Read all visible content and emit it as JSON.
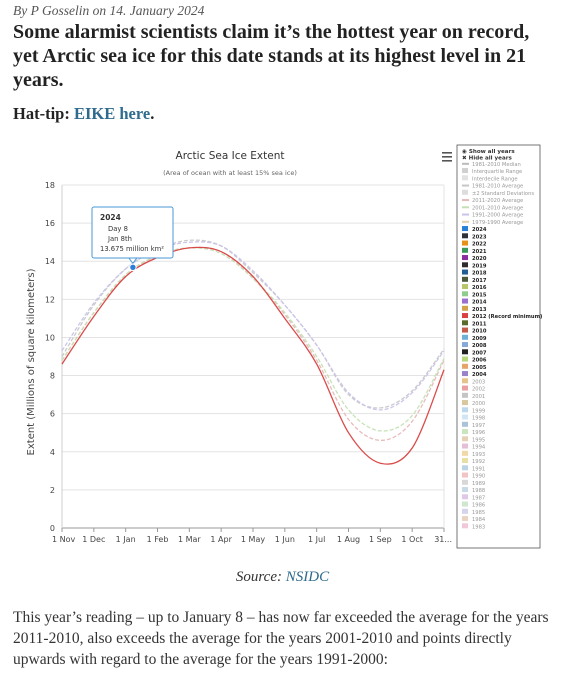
{
  "article": {
    "byline_prefix": "By",
    "author": "P Gosselin",
    "date_prefix": "on",
    "date": "14. January 2024",
    "headline": "Some alarmist scientists claim it’s the hottest year on record, yet Arctic sea ice for this date stands at its highest level in 21 years.",
    "hattip_label": "Hat-tip:",
    "hattip_link": "EIKE here",
    "hattip_end": ".",
    "source_label": "Source:",
    "source_link": "NSIDC",
    "body": "This year’s reading – up to January 8 – has now far exceeded the average for the years 2011-2010, also exceeds the average for the years 2001-2010 and points directly upwards with regard to the average for the years 1991-2000:"
  },
  "colors": {
    "link": "#2e6b8e",
    "highlight_2024": "#4a9ad4",
    "tooltip_border": "#4a9ad4"
  },
  "chart_data": {
    "type": "line",
    "title": "Arctic Sea Ice Extent",
    "subtitle": "(Area of ocean with at least 15% sea ice)",
    "ylabel": "Extent (Millions of square kilometers)",
    "xlabel": "",
    "ylim": [
      0,
      18
    ],
    "y_ticks": [
      0,
      2,
      4,
      6,
      8,
      10,
      12,
      14,
      16,
      18
    ],
    "x_ticks": [
      "1 Nov",
      "1 Dec",
      "1 Jan",
      "1 Feb",
      "1 Mar",
      "1 Apr",
      "1 May",
      "1 Jun",
      "1 Jul",
      "1 Aug",
      "1 Sep",
      "1 Oct",
      "31..."
    ],
    "x_months": [
      "Nov",
      "Dec",
      "Jan",
      "Feb",
      "Mar",
      "Apr",
      "May",
      "Jun",
      "Jul",
      "Aug",
      "Sep",
      "Oct",
      "Oct-end"
    ],
    "grid": true,
    "legend_position": "right",
    "tooltip": {
      "year": "2024",
      "line1": "Day 8",
      "line2": "Jan 8th",
      "line3": "13.675 million km²"
    },
    "series": [
      {
        "name": "2024",
        "values": [
          null,
          null,
          13.68,
          null,
          null,
          null,
          null,
          null,
          null,
          null,
          null,
          null,
          null
        ]
      },
      {
        "name": "1981-2010 Average",
        "values": [
          9.0,
          11.7,
          13.6,
          14.6,
          15.1,
          14.8,
          13.4,
          11.7,
          9.6,
          7.0,
          6.3,
          7.2,
          9.4
        ]
      },
      {
        "name": "2011-2020 Average",
        "values": [
          8.8,
          11.3,
          13.2,
          14.3,
          14.7,
          14.5,
          13.1,
          11.2,
          8.8,
          5.7,
          4.6,
          5.6,
          8.8
        ]
      },
      {
        "name": "2001-2010 Average",
        "values": [
          8.8,
          11.3,
          13.3,
          14.3,
          14.7,
          14.4,
          13.1,
          11.3,
          9.0,
          6.2,
          5.1,
          5.9,
          8.9
        ]
      },
      {
        "name": "1991-2000 Average",
        "values": [
          9.3,
          11.8,
          13.6,
          14.6,
          15.0,
          14.8,
          13.5,
          11.7,
          9.6,
          7.1,
          6.2,
          7.1,
          9.3
        ]
      },
      {
        "name": "2012 (Record minimum)",
        "values": [
          8.6,
          11.1,
          13.2,
          14.2,
          14.7,
          14.5,
          13.2,
          11.0,
          8.6,
          5.0,
          3.4,
          4.2,
          8.3
        ]
      }
    ],
    "legend": [
      {
        "label": "Show all years",
        "color": "#555555",
        "style": "control",
        "bold": true
      },
      {
        "label": "Hide all years",
        "color": "#555555",
        "style": "control",
        "bold": true
      },
      {
        "label": "1981-2010 Median",
        "color": "#bbbbbb",
        "style": "line",
        "bold": false
      },
      {
        "label": "Interquartile Range",
        "color": "#d0d0d0",
        "style": "box",
        "bold": false
      },
      {
        "label": "Interdecile Range",
        "color": "#e2e2e2",
        "style": "box",
        "bold": false
      },
      {
        "label": "1981-2010 Average",
        "color": "#c7c7c7",
        "style": "line",
        "bold": false
      },
      {
        "label": "±2 Standard Deviations",
        "color": "#dddddd",
        "style": "box",
        "bold": false
      },
      {
        "label": "2011-2020 Average",
        "color": "#e7b8b8",
        "style": "line",
        "bold": false
      },
      {
        "label": "2001-2010 Average",
        "color": "#c3e0b3",
        "style": "line",
        "bold": false
      },
      {
        "label": "1991-2000 Average",
        "color": "#c9c3ea",
        "style": "line",
        "bold": false
      },
      {
        "label": "1979-1990 Average",
        "color": "#e6cfa7",
        "style": "line",
        "bold": false
      },
      {
        "label": "2024",
        "color": "#2a7fd6",
        "style": "box",
        "bold": true
      },
      {
        "label": "2023",
        "color": "#2e3238",
        "style": "box",
        "bold": true
      },
      {
        "label": "2022",
        "color": "#e69119",
        "style": "box",
        "bold": true
      },
      {
        "label": "2021",
        "color": "#3b9a5a",
        "style": "box",
        "bold": true
      },
      {
        "label": "2020",
        "color": "#8a2ea0",
        "style": "box",
        "bold": true
      },
      {
        "label": "2019",
        "color": "#2c2c2c",
        "style": "box",
        "bold": true
      },
      {
        "label": "2018",
        "color": "#1f5f96",
        "style": "box",
        "bold": true
      },
      {
        "label": "2017",
        "color": "#4a5a3a",
        "style": "box",
        "bold": true
      },
      {
        "label": "2016",
        "color": "#b8c66a",
        "style": "box",
        "bold": true
      },
      {
        "label": "2015",
        "color": "#8fcd8f",
        "style": "box",
        "bold": true
      },
      {
        "label": "2014",
        "color": "#9a6fcf",
        "style": "box",
        "bold": true
      },
      {
        "label": "2013",
        "color": "#d3a34a",
        "style": "box",
        "bold": true
      },
      {
        "label": "2012 (Record minimum)",
        "color": "#d94141",
        "style": "box",
        "bold": true
      },
      {
        "label": "2011",
        "color": "#5a6a2a",
        "style": "box",
        "bold": true
      },
      {
        "label": "2010",
        "color": "#c65a4a",
        "style": "box",
        "bold": true
      },
      {
        "label": "2009",
        "color": "#6fb0d9",
        "style": "box",
        "bold": true
      },
      {
        "label": "2008",
        "color": "#86a9d8",
        "style": "box",
        "bold": true
      },
      {
        "label": "2007",
        "color": "#222222",
        "style": "box",
        "bold": true
      },
      {
        "label": "2006",
        "color": "#b6d77a",
        "style": "box",
        "bold": true
      },
      {
        "label": "2005",
        "color": "#e7a46a",
        "style": "box",
        "bold": true
      },
      {
        "label": "2004",
        "color": "#9a83c9",
        "style": "box",
        "bold": true
      },
      {
        "label": "2003",
        "color": "#e6c38a",
        "style": "box",
        "bold": false
      },
      {
        "label": "2002",
        "color": "#e8a0a0",
        "style": "box",
        "bold": false
      },
      {
        "label": "2001",
        "color": "#c5c5c5",
        "style": "box",
        "bold": false
      },
      {
        "label": "2000",
        "color": "#d9c7a0",
        "style": "box",
        "bold": false
      },
      {
        "label": "1999",
        "color": "#bcd8ef",
        "style": "box",
        "bold": false
      },
      {
        "label": "1998",
        "color": "#d0e6f4",
        "style": "box",
        "bold": false
      },
      {
        "label": "1997",
        "color": "#a9c4d8",
        "style": "box",
        "bold": false
      },
      {
        "label": "1996",
        "color": "#c9e6c0",
        "style": "box",
        "bold": false
      },
      {
        "label": "1995",
        "color": "#e7d1b6",
        "style": "box",
        "bold": false
      },
      {
        "label": "1994",
        "color": "#e4bfd6",
        "style": "box",
        "bold": false
      },
      {
        "label": "1993",
        "color": "#f0d8a8",
        "style": "box",
        "bold": false
      },
      {
        "label": "1992",
        "color": "#e6e0a6",
        "style": "box",
        "bold": false
      },
      {
        "label": "1991",
        "color": "#b9d4e6",
        "style": "box",
        "bold": false
      },
      {
        "label": "1990",
        "color": "#f2c4c4",
        "style": "box",
        "bold": false
      },
      {
        "label": "1989",
        "color": "#d8d8d8",
        "style": "box",
        "bold": false
      },
      {
        "label": "1988",
        "color": "#c8d9e8",
        "style": "box",
        "bold": false
      },
      {
        "label": "1987",
        "color": "#dfc9e6",
        "style": "box",
        "bold": false
      },
      {
        "label": "1986",
        "color": "#cfe7cf",
        "style": "box",
        "bold": false
      },
      {
        "label": "1985",
        "color": "#d4d4ea",
        "style": "box",
        "bold": false
      },
      {
        "label": "1984",
        "color": "#e8d4c0",
        "style": "box",
        "bold": false
      },
      {
        "label": "1983",
        "color": "#f0c8d8",
        "style": "box",
        "bold": false
      }
    ]
  }
}
